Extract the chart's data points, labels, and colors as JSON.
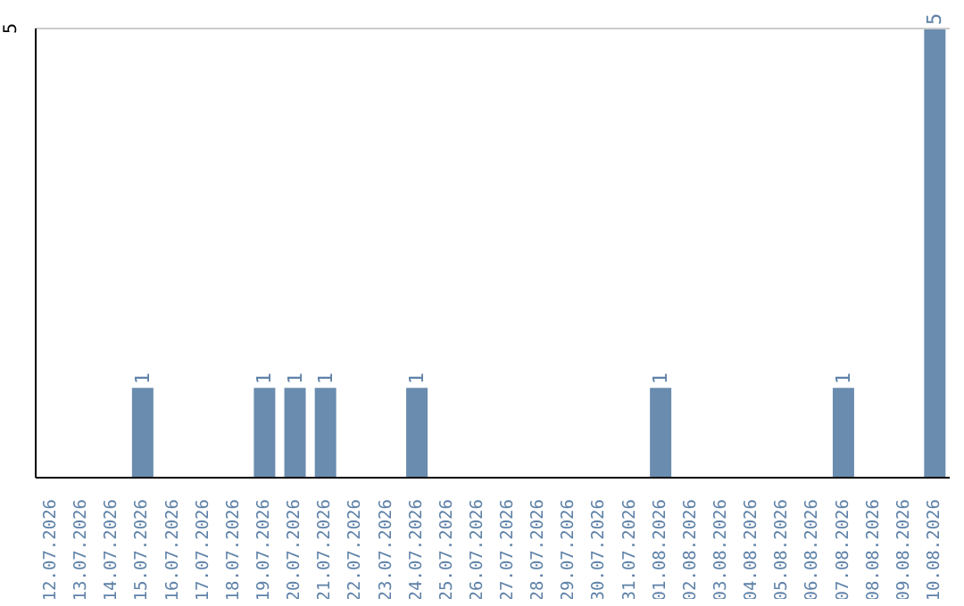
{
  "chart_data": {
    "type": "bar",
    "categories": [
      "12.07.2026",
      "13.07.2026",
      "14.07.2026",
      "15.07.2026",
      "16.07.2026",
      "17.07.2026",
      "18.07.2026",
      "19.07.2026",
      "20.07.2026",
      "21.07.2026",
      "22.07.2026",
      "23.07.2026",
      "24.07.2026",
      "25.07.2026",
      "26.07.2026",
      "27.07.2026",
      "28.07.2026",
      "29.07.2026",
      "30.07.2026",
      "31.07.2026",
      "01.08.2026",
      "02.08.2026",
      "03.08.2026",
      "04.08.2026",
      "05.08.2026",
      "06.08.2026",
      "07.08.2026",
      "08.08.2026",
      "09.08.2026",
      "10.08.2026"
    ],
    "values": [
      0,
      0,
      0,
      1,
      0,
      0,
      0,
      1,
      1,
      1,
      0,
      0,
      1,
      0,
      0,
      0,
      0,
      0,
      0,
      0,
      1,
      0,
      0,
      0,
      0,
      0,
      1,
      0,
      0,
      5
    ],
    "value_labels": [
      null,
      null,
      null,
      "1",
      null,
      null,
      null,
      "1",
      "1",
      "1",
      null,
      null,
      "1",
      null,
      null,
      null,
      null,
      null,
      null,
      null,
      "1",
      null,
      null,
      null,
      null,
      null,
      "1",
      null,
      null,
      "5"
    ],
    "color": "#6a8caf",
    "ylim": [
      0,
      5
    ],
    "yticks": [
      5
    ],
    "ref_lines": [
      {
        "axis": "y",
        "value": 5,
        "color": "#cccccc"
      }
    ]
  }
}
